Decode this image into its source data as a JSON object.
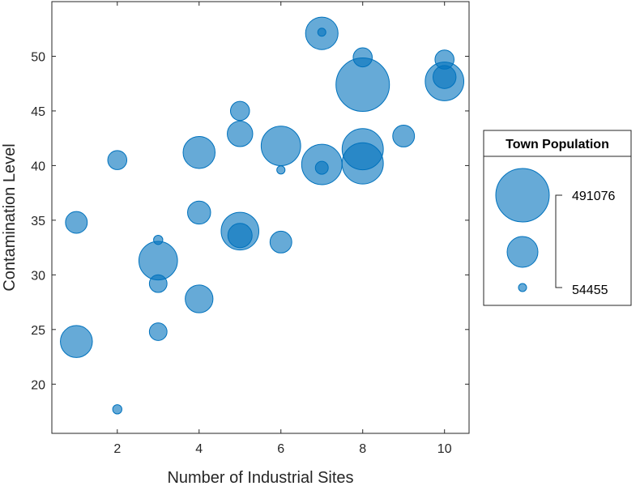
{
  "chart_data": {
    "type": "bubble",
    "xlabel": "Number of Industrial Sites",
    "ylabel": "Contamination Level",
    "xlim": [
      0.4,
      10.6
    ],
    "ylim": [
      15.5,
      55
    ],
    "xticks": [
      2,
      4,
      6,
      8,
      10
    ],
    "yticks": [
      20,
      25,
      30,
      35,
      40,
      45,
      50
    ],
    "color": "#0072BD",
    "legend": {
      "title": "Town Population",
      "max_label": "491076",
      "min_label": "54455",
      "max_value": 491076,
      "min_value": 54455
    },
    "points": [
      {
        "x": 7,
        "y": 52.1,
        "size": 235000
      },
      {
        "x": 7,
        "y": 52.2,
        "size": 54455
      },
      {
        "x": 8,
        "y": 49.9,
        "size": 120000
      },
      {
        "x": 8,
        "y": 47.4,
        "size": 491076
      },
      {
        "x": 10,
        "y": 49.7,
        "size": 120000
      },
      {
        "x": 10,
        "y": 47.7,
        "size": 300000
      },
      {
        "x": 10,
        "y": 48.1,
        "size": 150000
      },
      {
        "x": 5,
        "y": 45.0,
        "size": 120000
      },
      {
        "x": 5,
        "y": 42.9,
        "size": 170000
      },
      {
        "x": 6,
        "y": 41.8,
        "size": 310000
      },
      {
        "x": 9,
        "y": 42.7,
        "size": 140000
      },
      {
        "x": 8,
        "y": 41.5,
        "size": 330000
      },
      {
        "x": 8,
        "y": 40.2,
        "size": 330000
      },
      {
        "x": 7,
        "y": 40.1,
        "size": 320000
      },
      {
        "x": 7,
        "y": 39.8,
        "size": 80000
      },
      {
        "x": 6,
        "y": 39.6,
        "size": 55000
      },
      {
        "x": 4,
        "y": 41.2,
        "size": 230000
      },
      {
        "x": 2,
        "y": 40.5,
        "size": 120000
      },
      {
        "x": 4,
        "y": 35.7,
        "size": 150000
      },
      {
        "x": 1,
        "y": 34.8,
        "size": 140000
      },
      {
        "x": 5,
        "y": 34.0,
        "size": 290000
      },
      {
        "x": 5,
        "y": 33.6,
        "size": 160000
      },
      {
        "x": 6,
        "y": 33.0,
        "size": 140000
      },
      {
        "x": 3,
        "y": 33.2,
        "size": 60000
      },
      {
        "x": 3,
        "y": 31.3,
        "size": 300000
      },
      {
        "x": 3,
        "y": 29.2,
        "size": 110000
      },
      {
        "x": 4,
        "y": 27.8,
        "size": 190000
      },
      {
        "x": 3,
        "y": 24.8,
        "size": 110000
      },
      {
        "x": 1,
        "y": 23.9,
        "size": 230000
      },
      {
        "x": 2,
        "y": 17.7,
        "size": 60000
      }
    ]
  }
}
